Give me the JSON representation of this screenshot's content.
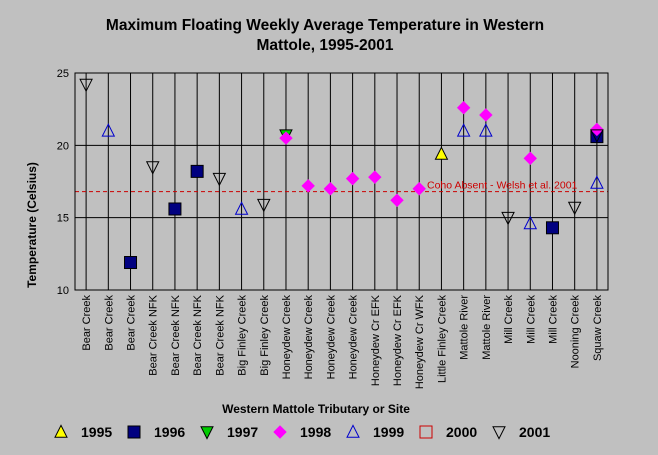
{
  "chart_data": {
    "type": "scatter",
    "title": [
      "Maximum Floating Weekly Average Temperature in Western",
      "Mattole, 1995-2001"
    ],
    "xlabel": "Western Mattole Tributary or Site",
    "ylabel": "Temperature (Celsius)",
    "ylim": [
      10,
      25
    ],
    "yticks": [
      10,
      15,
      20,
      25
    ],
    "grid": true,
    "legend_position": "bottom",
    "categories": [
      "Bear Creek",
      "Bear Creek",
      "Bear Creek",
      "Bear Creek NFK",
      "Bear Creek NFK",
      "Bear Creek NFK",
      "Bear Creek NFK",
      "Big Finley Creek",
      "Big Finley Creek",
      "Honeydew Creek",
      "Honeydew Creek",
      "Honeydew Creek",
      "Honeydew Creek",
      "Honeydew Cr EFK",
      "Honeydew Cr EFK",
      "Honeydew Cr WFK",
      "Little Finley Creek",
      "Mattole River",
      "Mattole River",
      "Mill Creek",
      "Mill Creek",
      "Mill Creek",
      "Nooning Creek",
      "Squaw Creek"
    ],
    "reference_line": {
      "value": 16.8,
      "label": "Coho Absent - Welsh et al. 2001",
      "color": "#cc0000"
    },
    "series": [
      {
        "name": "1995",
        "marker": "triangle-up",
        "color": "#ffff00",
        "filled": true,
        "points": [
          {
            "x": 17,
            "y": 19.4
          }
        ]
      },
      {
        "name": "1996",
        "marker": "square",
        "color": "#000080",
        "filled": true,
        "points": [
          {
            "x": 3,
            "y": 11.9
          },
          {
            "x": 5,
            "y": 15.6
          },
          {
            "x": 6,
            "y": 18.2
          },
          {
            "x": 22,
            "y": 14.3
          },
          {
            "x": 24,
            "y": 20.6
          }
        ]
      },
      {
        "name": "1997",
        "marker": "triangle-down",
        "color": "#00cc00",
        "filled": true,
        "points": [
          {
            "x": 10,
            "y": 20.7
          }
        ]
      },
      {
        "name": "1998",
        "marker": "diamond",
        "color": "#ff00ff",
        "filled": true,
        "points": [
          {
            "x": 10,
            "y": 20.5
          },
          {
            "x": 11,
            "y": 17.2
          },
          {
            "x": 12,
            "y": 17.0
          },
          {
            "x": 13,
            "y": 17.7
          },
          {
            "x": 14,
            "y": 17.8
          },
          {
            "x": 15,
            "y": 16.2
          },
          {
            "x": 16,
            "y": 17.0
          },
          {
            "x": 18,
            "y": 22.6
          },
          {
            "x": 19,
            "y": 22.1
          },
          {
            "x": 21,
            "y": 19.1
          },
          {
            "x": 24,
            "y": 21.1
          }
        ]
      },
      {
        "name": "1999",
        "marker": "triangle-up",
        "color": "#0000cc",
        "filled": false,
        "points": [
          {
            "x": 2,
            "y": 21.0
          },
          {
            "x": 8,
            "y": 15.6
          },
          {
            "x": 18,
            "y": 21.0
          },
          {
            "x": 19,
            "y": 21.0
          },
          {
            "x": 21,
            "y": 14.6
          },
          {
            "x": 24,
            "y": 17.4
          }
        ]
      },
      {
        "name": "2000",
        "marker": "square",
        "color": "#cc0000",
        "filled": false,
        "points": []
      },
      {
        "name": "2001",
        "marker": "triangle-down",
        "color": "#000000",
        "filled": false,
        "points": [
          {
            "x": 1,
            "y": 24.2
          },
          {
            "x": 4,
            "y": 18.5
          },
          {
            "x": 7,
            "y": 17.7
          },
          {
            "x": 9,
            "y": 15.9
          },
          {
            "x": 20,
            "y": 15.0
          },
          {
            "x": 23,
            "y": 15.7
          },
          {
            "x": 24,
            "y": 20.7
          }
        ]
      }
    ]
  }
}
